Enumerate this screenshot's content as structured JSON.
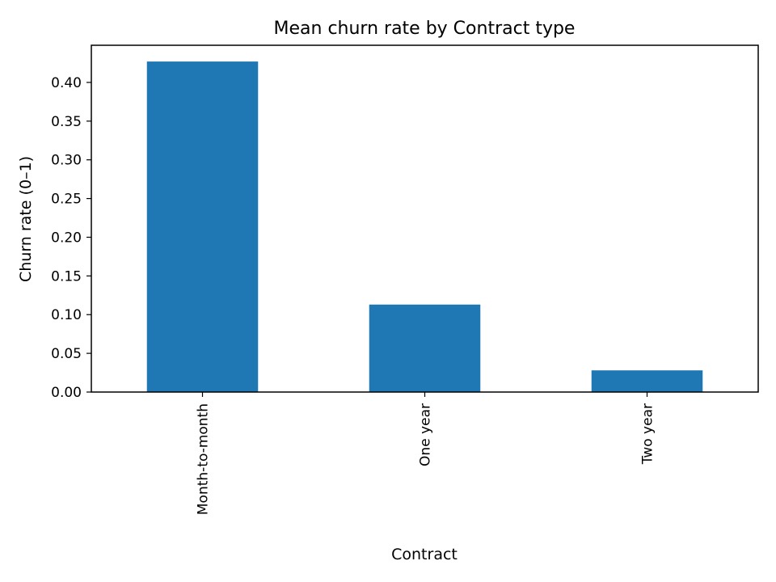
{
  "chart_data": {
    "type": "bar",
    "title": "Mean churn rate by Contract type",
    "xlabel": "Contract",
    "ylabel": "Churn rate (0–1)",
    "categories": [
      "Month-to-month",
      "One year",
      "Two year"
    ],
    "values": [
      0.427,
      0.113,
      0.028
    ],
    "ylim": [
      0,
      0.448
    ],
    "yticks": [
      "0.00",
      "0.05",
      "0.10",
      "0.15",
      "0.20",
      "0.25",
      "0.30",
      "0.35",
      "0.40"
    ],
    "bar_color": "#1f77b4",
    "grid": false,
    "legend": "none"
  }
}
